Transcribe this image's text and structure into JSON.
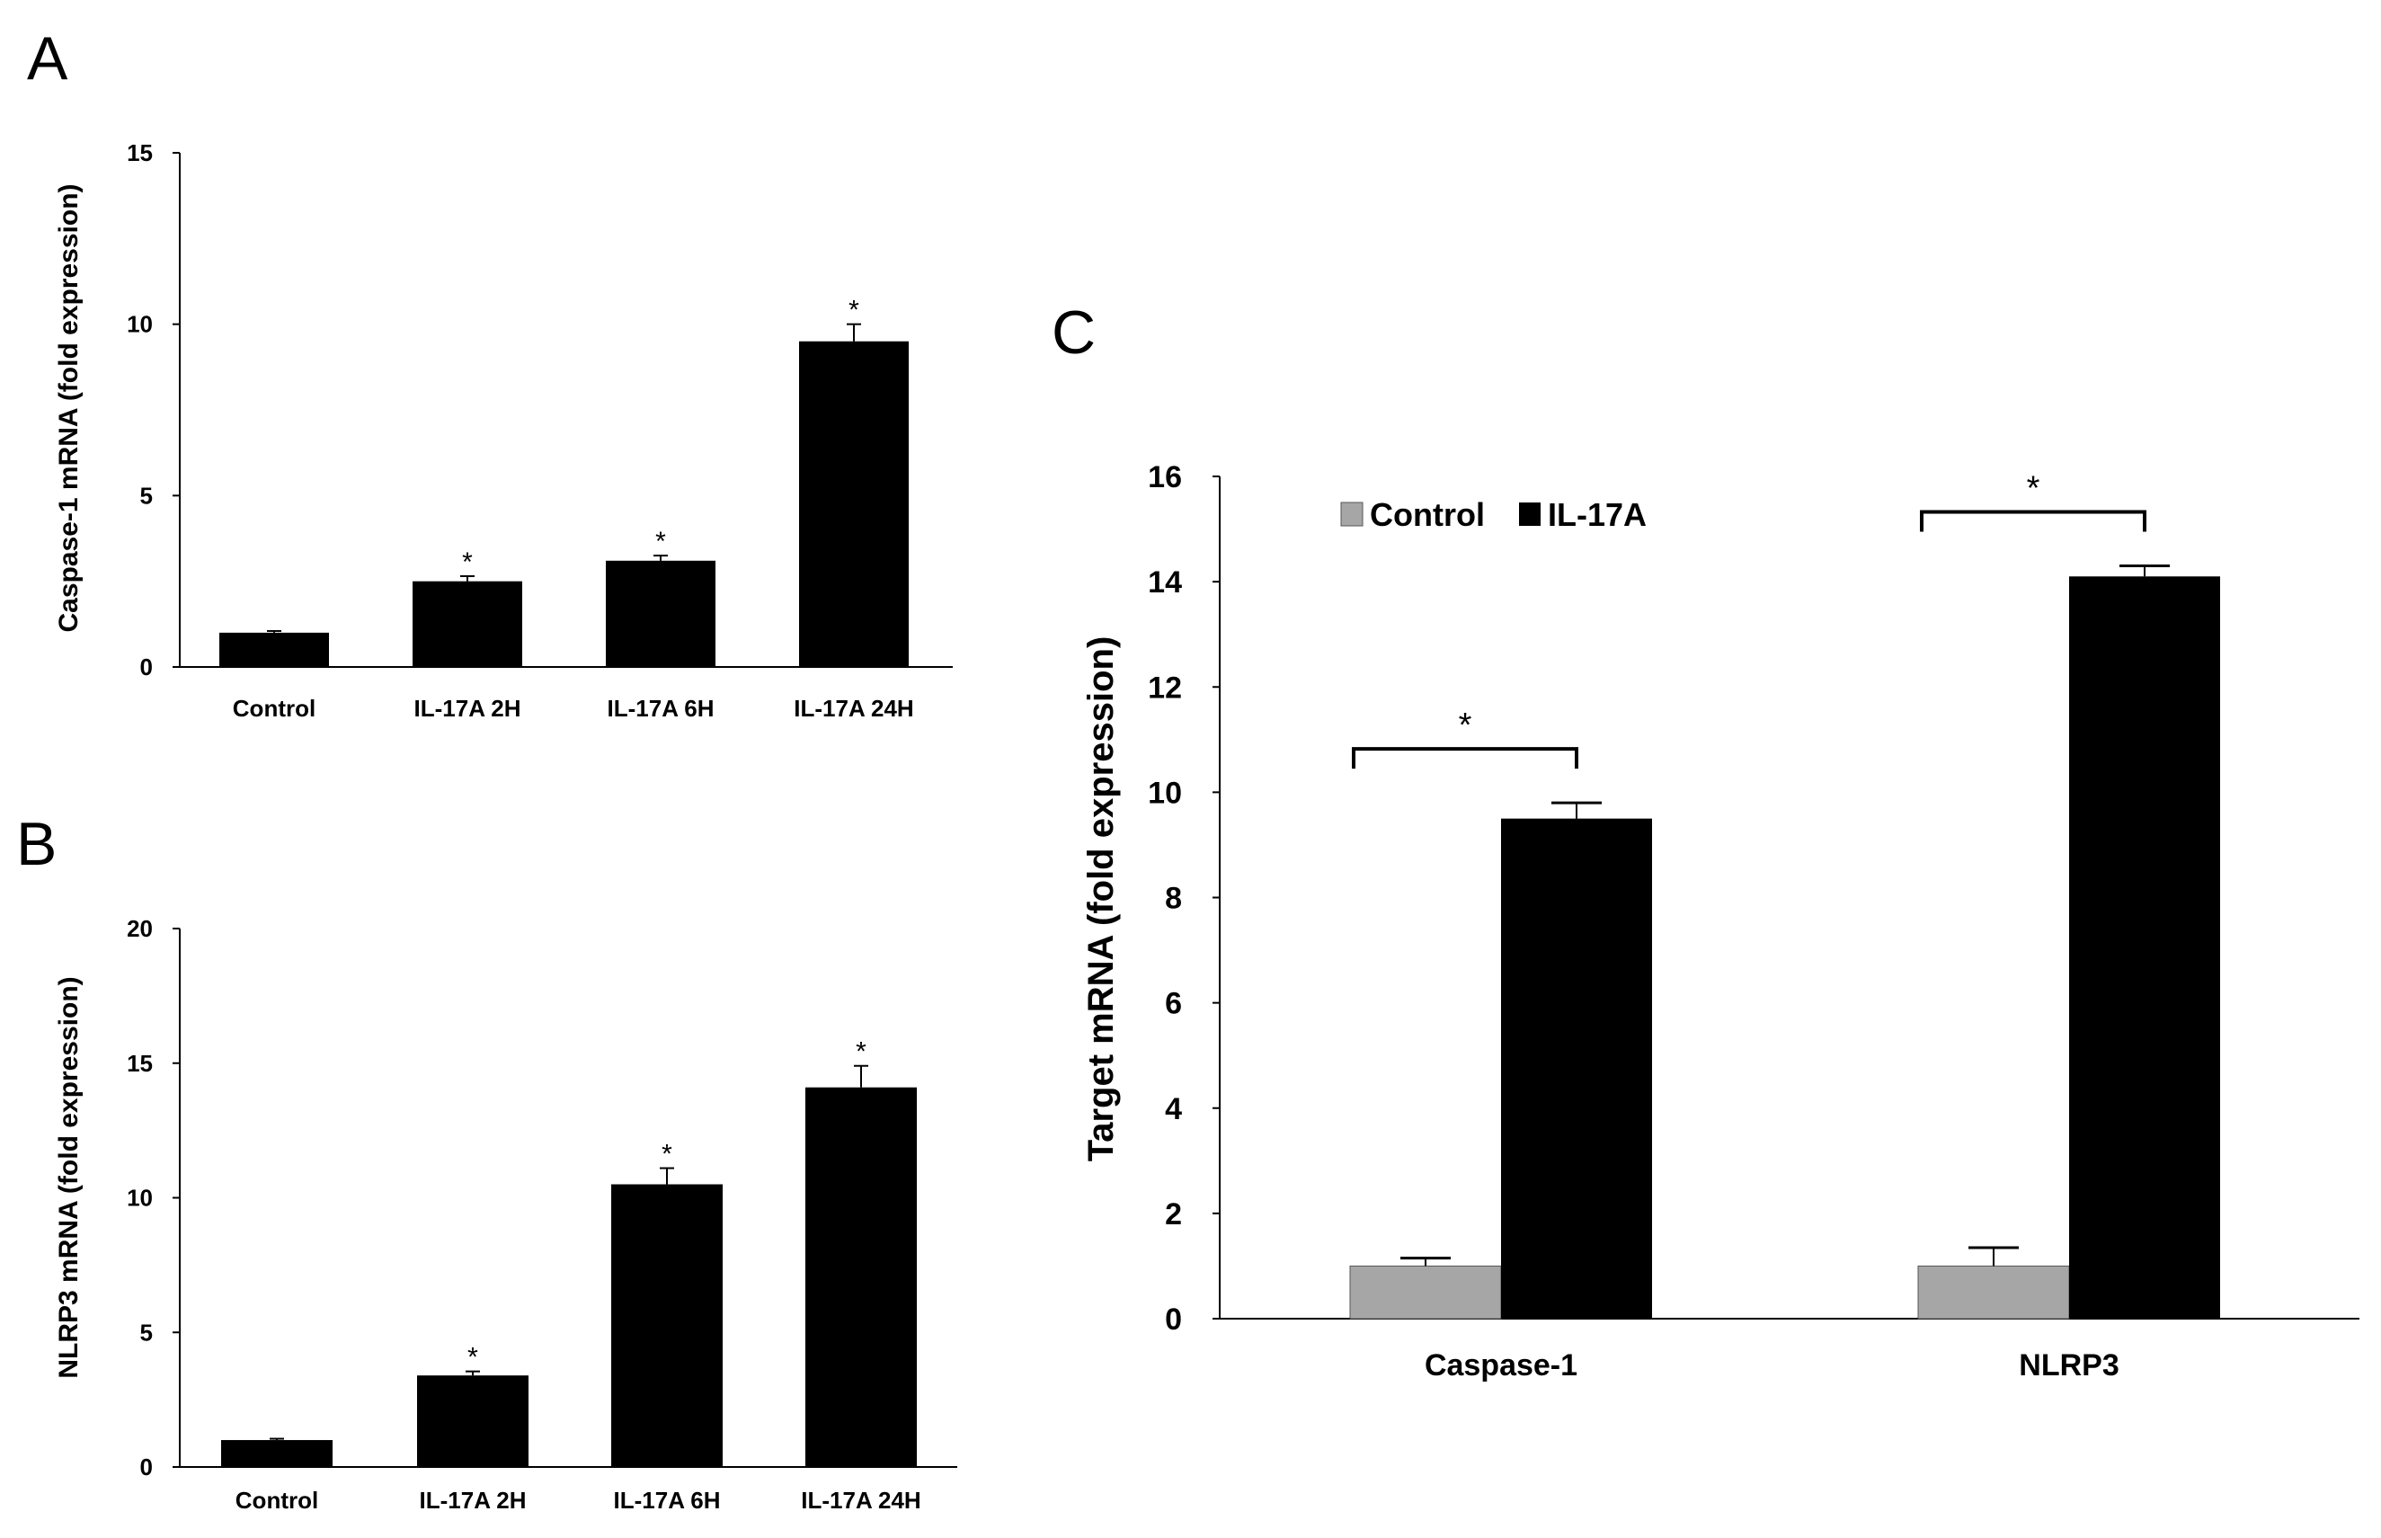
{
  "chart_data": [
    {
      "panel": "A",
      "type": "bar",
      "categories": [
        "Control",
        "IL-17A 2H",
        "IL-17A 6H",
        "IL-17A 24H"
      ],
      "values": [
        1.0,
        2.5,
        3.1,
        9.5
      ],
      "errors": [
        0.05,
        0.15,
        0.15,
        0.5
      ],
      "significance": [
        "",
        "*",
        "*",
        "*"
      ],
      "title": "",
      "xlabel": "",
      "ylabel": "Caspase-1 mRNA (fold expression)",
      "ylim": [
        0,
        15
      ],
      "yticks": [
        0,
        5,
        10,
        15
      ],
      "grid": false,
      "color": "#000000"
    },
    {
      "panel": "B",
      "type": "bar",
      "categories": [
        "Control",
        "IL-17A 2H",
        "IL-17A 6H",
        "IL-17A 24H"
      ],
      "values": [
        1.0,
        3.4,
        10.5,
        14.1
      ],
      "errors": [
        0.05,
        0.15,
        0.6,
        0.8
      ],
      "significance": [
        "",
        "*",
        "*",
        "*"
      ],
      "title": "",
      "xlabel": "",
      "ylabel": "NLRP3 mRNA (fold expression)",
      "ylim": [
        0,
        20
      ],
      "yticks": [
        0,
        5,
        10,
        15,
        20
      ],
      "grid": false,
      "color": "#000000"
    },
    {
      "panel": "C",
      "type": "bar",
      "categories": [
        "Caspase-1",
        "NLRP3"
      ],
      "series": [
        {
          "name": "Control",
          "values": [
            1.0,
            1.0
          ],
          "errors": [
            0.15,
            0.35
          ],
          "color": "#a6a6a6"
        },
        {
          "name": "IL-17A",
          "values": [
            9.5,
            14.1
          ],
          "errors": [
            0.3,
            0.2
          ],
          "color": "#000000"
        }
      ],
      "significance": [
        "*",
        "*"
      ],
      "title": "",
      "xlabel": "",
      "ylabel": "Target  mRNA (fold expression)",
      "ylim": [
        0,
        16
      ],
      "yticks": [
        0,
        2,
        4,
        6,
        8,
        10,
        12,
        14,
        16
      ],
      "legend": "top-left",
      "grid": false
    }
  ]
}
